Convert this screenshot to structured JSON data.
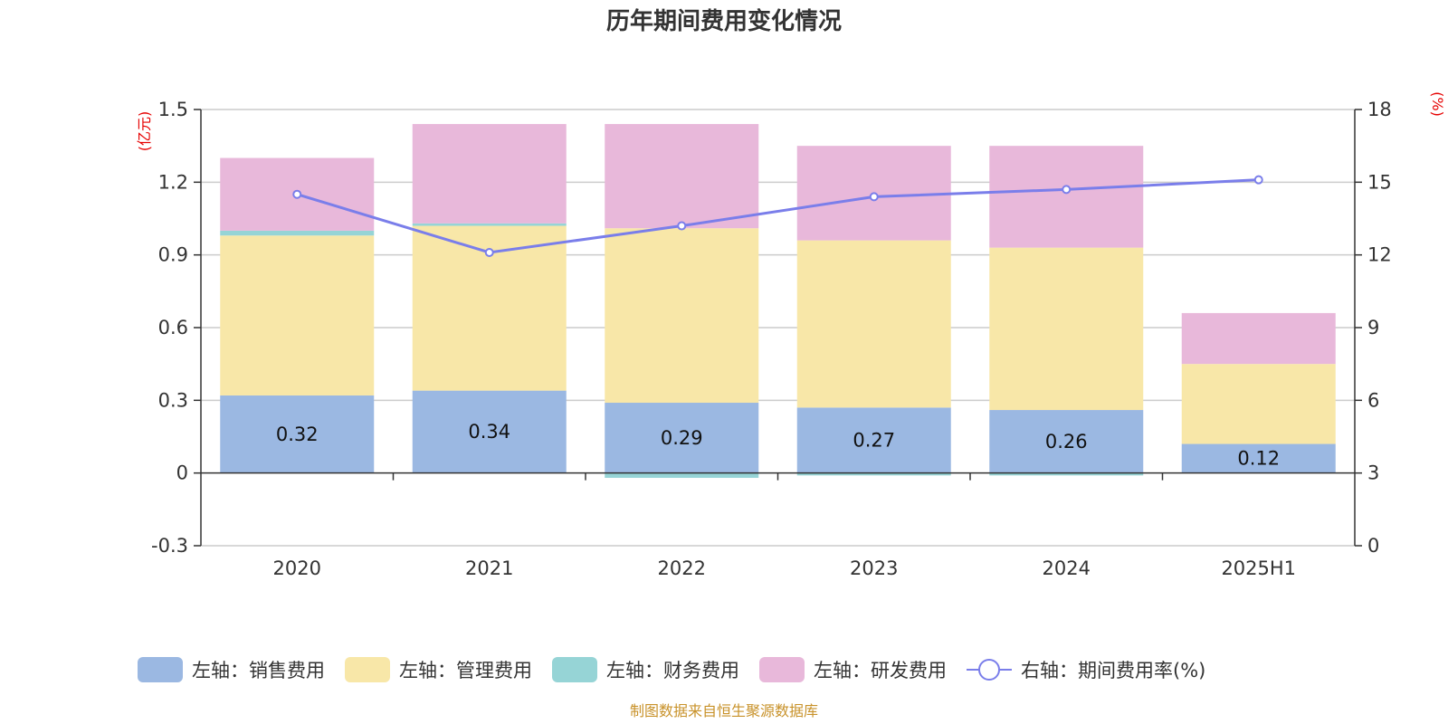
{
  "chart_data": {
    "type": "bar",
    "title": "历年期间费用变化情况",
    "categories": [
      "2020",
      "2021",
      "2022",
      "2023",
      "2024",
      "2025H1"
    ],
    "left_axis": {
      "unit": "(亿元)",
      "ylim": [
        -0.3,
        1.5
      ],
      "ticks": [
        "-0.3",
        "0",
        "0.3",
        "0.6",
        "0.9",
        "1.2",
        "1.5"
      ]
    },
    "right_axis": {
      "unit": "(%)",
      "ylim": [
        0,
        18
      ],
      "ticks": [
        "0",
        "3",
        "6",
        "9",
        "12",
        "15",
        "18"
      ]
    },
    "stacked": true,
    "series": [
      {
        "name": "左轴：销售费用",
        "type": "bar",
        "axis": "left",
        "color": "#9bb8e2",
        "values": [
          0.32,
          0.34,
          0.29,
          0.27,
          0.26,
          0.12
        ],
        "labels": [
          "0.32",
          "0.34",
          "0.29",
          "0.27",
          "0.26",
          "0.12"
        ]
      },
      {
        "name": "左轴：管理费用",
        "type": "bar",
        "axis": "left",
        "color": "#f8e7a8",
        "values": [
          0.66,
          0.68,
          0.72,
          0.69,
          0.67,
          0.33
        ]
      },
      {
        "name": "左轴：财务费用",
        "type": "bar",
        "axis": "left",
        "color": "#96d4d6",
        "values": [
          0.02,
          0.01,
          -0.02,
          -0.01,
          -0.01,
          0.0
        ]
      },
      {
        "name": "左轴：研发费用",
        "type": "bar",
        "axis": "left",
        "color": "#e8b8da",
        "values": [
          0.3,
          0.41,
          0.43,
          0.39,
          0.42,
          0.21
        ]
      },
      {
        "name": "右轴：期间费用率(%)",
        "type": "line",
        "axis": "right",
        "color": "#7a7eea",
        "values": [
          14.5,
          12.1,
          13.2,
          14.4,
          14.7,
          15.1
        ]
      }
    ],
    "grid": true,
    "legend_position": "bottom"
  },
  "source": "制图数据来自恒生聚源数据库"
}
